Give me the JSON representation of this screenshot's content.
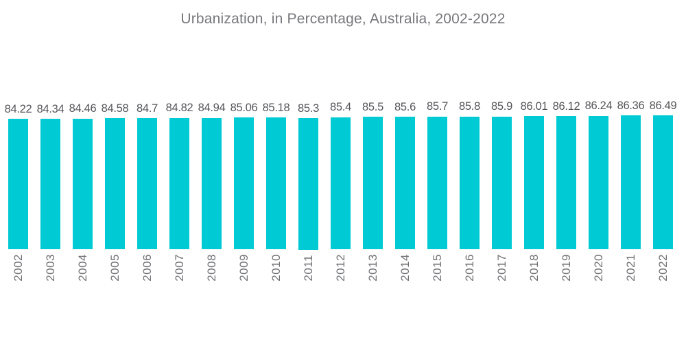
{
  "title": "Urbanization, in Percentage, Australia, 2002-2022",
  "colors": {
    "background": "#ffffff",
    "bar": "#00cad3",
    "title_text": "#76777b",
    "value_label_text": "#55565a",
    "year_label_text": "#707174"
  },
  "chart_data": {
    "type": "bar",
    "title": "Urbanization, in Percentage, Australia, 2002-2022",
    "xlabel": "",
    "ylabel": "",
    "categories": [
      "2002",
      "2003",
      "2004",
      "2005",
      "2006",
      "2007",
      "2008",
      "2009",
      "2010",
      "2011",
      "2012",
      "2013",
      "2014",
      "2015",
      "2016",
      "2017",
      "2018",
      "2019",
      "2020",
      "2021",
      "2022"
    ],
    "values": [
      84.22,
      84.34,
      84.46,
      84.58,
      84.7,
      84.82,
      84.94,
      85.06,
      85.18,
      85.3,
      85.4,
      85.5,
      85.6,
      85.7,
      85.8,
      85.9,
      86.01,
      86.12,
      86.24,
      86.36,
      86.49
    ],
    "value_labels": [
      "84.22",
      "84.34",
      "84.46",
      "84.58",
      "84.7",
      "84.82",
      "84.94",
      "85.06",
      "85.18",
      "85.3",
      "85.4",
      "85.5",
      "85.6",
      "85.7",
      "85.8",
      "85.9",
      "86.01",
      "86.12",
      "86.24",
      "86.36",
      "86.49"
    ],
    "bar_color": "#00cad3",
    "ylim": [
      0,
      86.49
    ],
    "grid": false,
    "legend": false,
    "value_labels_position": "above-bars",
    "category_labels_rotation": -90
  }
}
